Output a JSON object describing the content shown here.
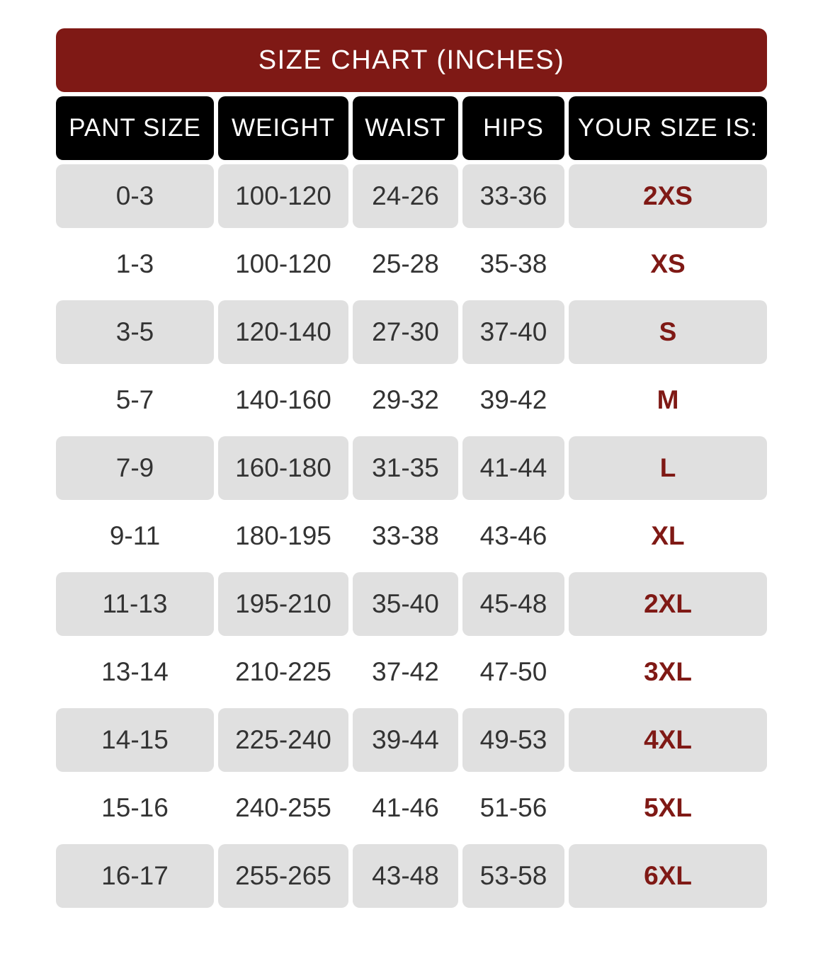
{
  "title": "SIZE CHART (INCHES)",
  "colors": {
    "accent": "#7f1915",
    "header": "#000000",
    "row_shade": "#e0e0e0"
  },
  "headers": [
    "PANT SIZE",
    "WEIGHT",
    "WAIST",
    "HIPS",
    "YOUR SIZE IS:"
  ],
  "rows": [
    [
      "0-3",
      "100-120",
      "24-26",
      "33-36",
      "2XS"
    ],
    [
      "1-3",
      "100-120",
      "25-28",
      "35-38",
      "XS"
    ],
    [
      "3-5",
      "120-140",
      "27-30",
      "37-40",
      "S"
    ],
    [
      "5-7",
      "140-160",
      "29-32",
      "39-42",
      "M"
    ],
    [
      "7-9",
      "160-180",
      "31-35",
      "41-44",
      "L"
    ],
    [
      "9-11",
      "180-195",
      "33-38",
      "43-46",
      "XL"
    ],
    [
      "11-13",
      "195-210",
      "35-40",
      "45-48",
      "2XL"
    ],
    [
      "13-14",
      "210-225",
      "37-42",
      "47-50",
      "3XL"
    ],
    [
      "14-15",
      "225-240",
      "39-44",
      "49-53",
      "4XL"
    ],
    [
      "15-16",
      "240-255",
      "41-46",
      "51-56",
      "5XL"
    ],
    [
      "16-17",
      "255-265",
      "43-48",
      "53-58",
      "6XL"
    ]
  ]
}
